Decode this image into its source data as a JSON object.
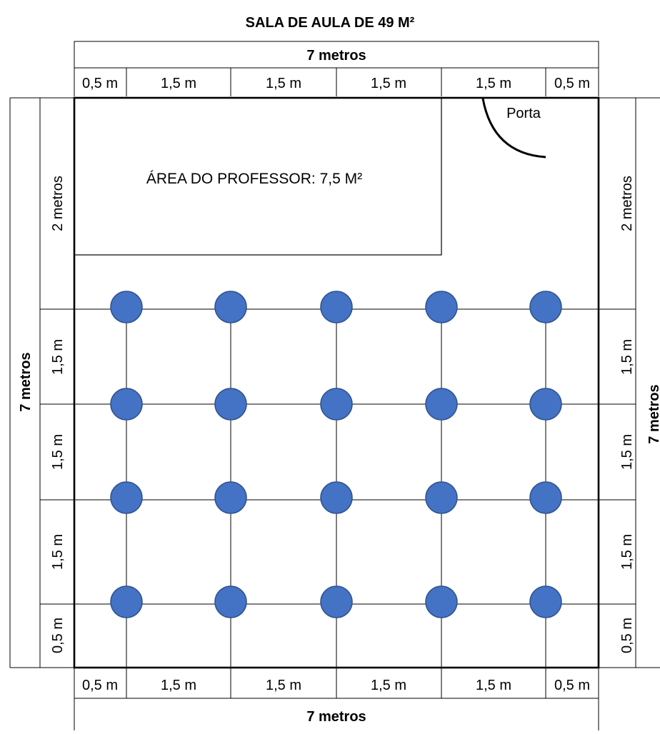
{
  "title": "SALA DE AULA DE 49 M²",
  "top": {
    "total_label": "7 metros",
    "segments": [
      "0,5 m",
      "1,5 m",
      "1,5 m",
      "1,5 m",
      "1,5 m",
      "0,5 m"
    ]
  },
  "bottom": {
    "total_label": "7 metros",
    "segments": [
      "0,5 m",
      "1,5 m",
      "1,5 m",
      "1,5 m",
      "1,5 m",
      "0,5 m"
    ]
  },
  "left": {
    "total_label": "7 metros",
    "segments": [
      "2 metros",
      "1,5 m",
      "1,5 m",
      "1,5 m",
      "0,5 m"
    ]
  },
  "right": {
    "total_label": "7 metros",
    "segments": [
      "2 metros",
      "1,5 m",
      "1,5 m",
      "1,5 m",
      "0,5 m"
    ]
  },
  "teacher_area": {
    "label": "ÁREA DO PROFESSOR: 7,5 M²"
  },
  "door": {
    "label": "Porta"
  },
  "seats": {
    "rows": 4,
    "cols": 5,
    "color": "#4472C4",
    "stroke": "#2F528F"
  }
}
